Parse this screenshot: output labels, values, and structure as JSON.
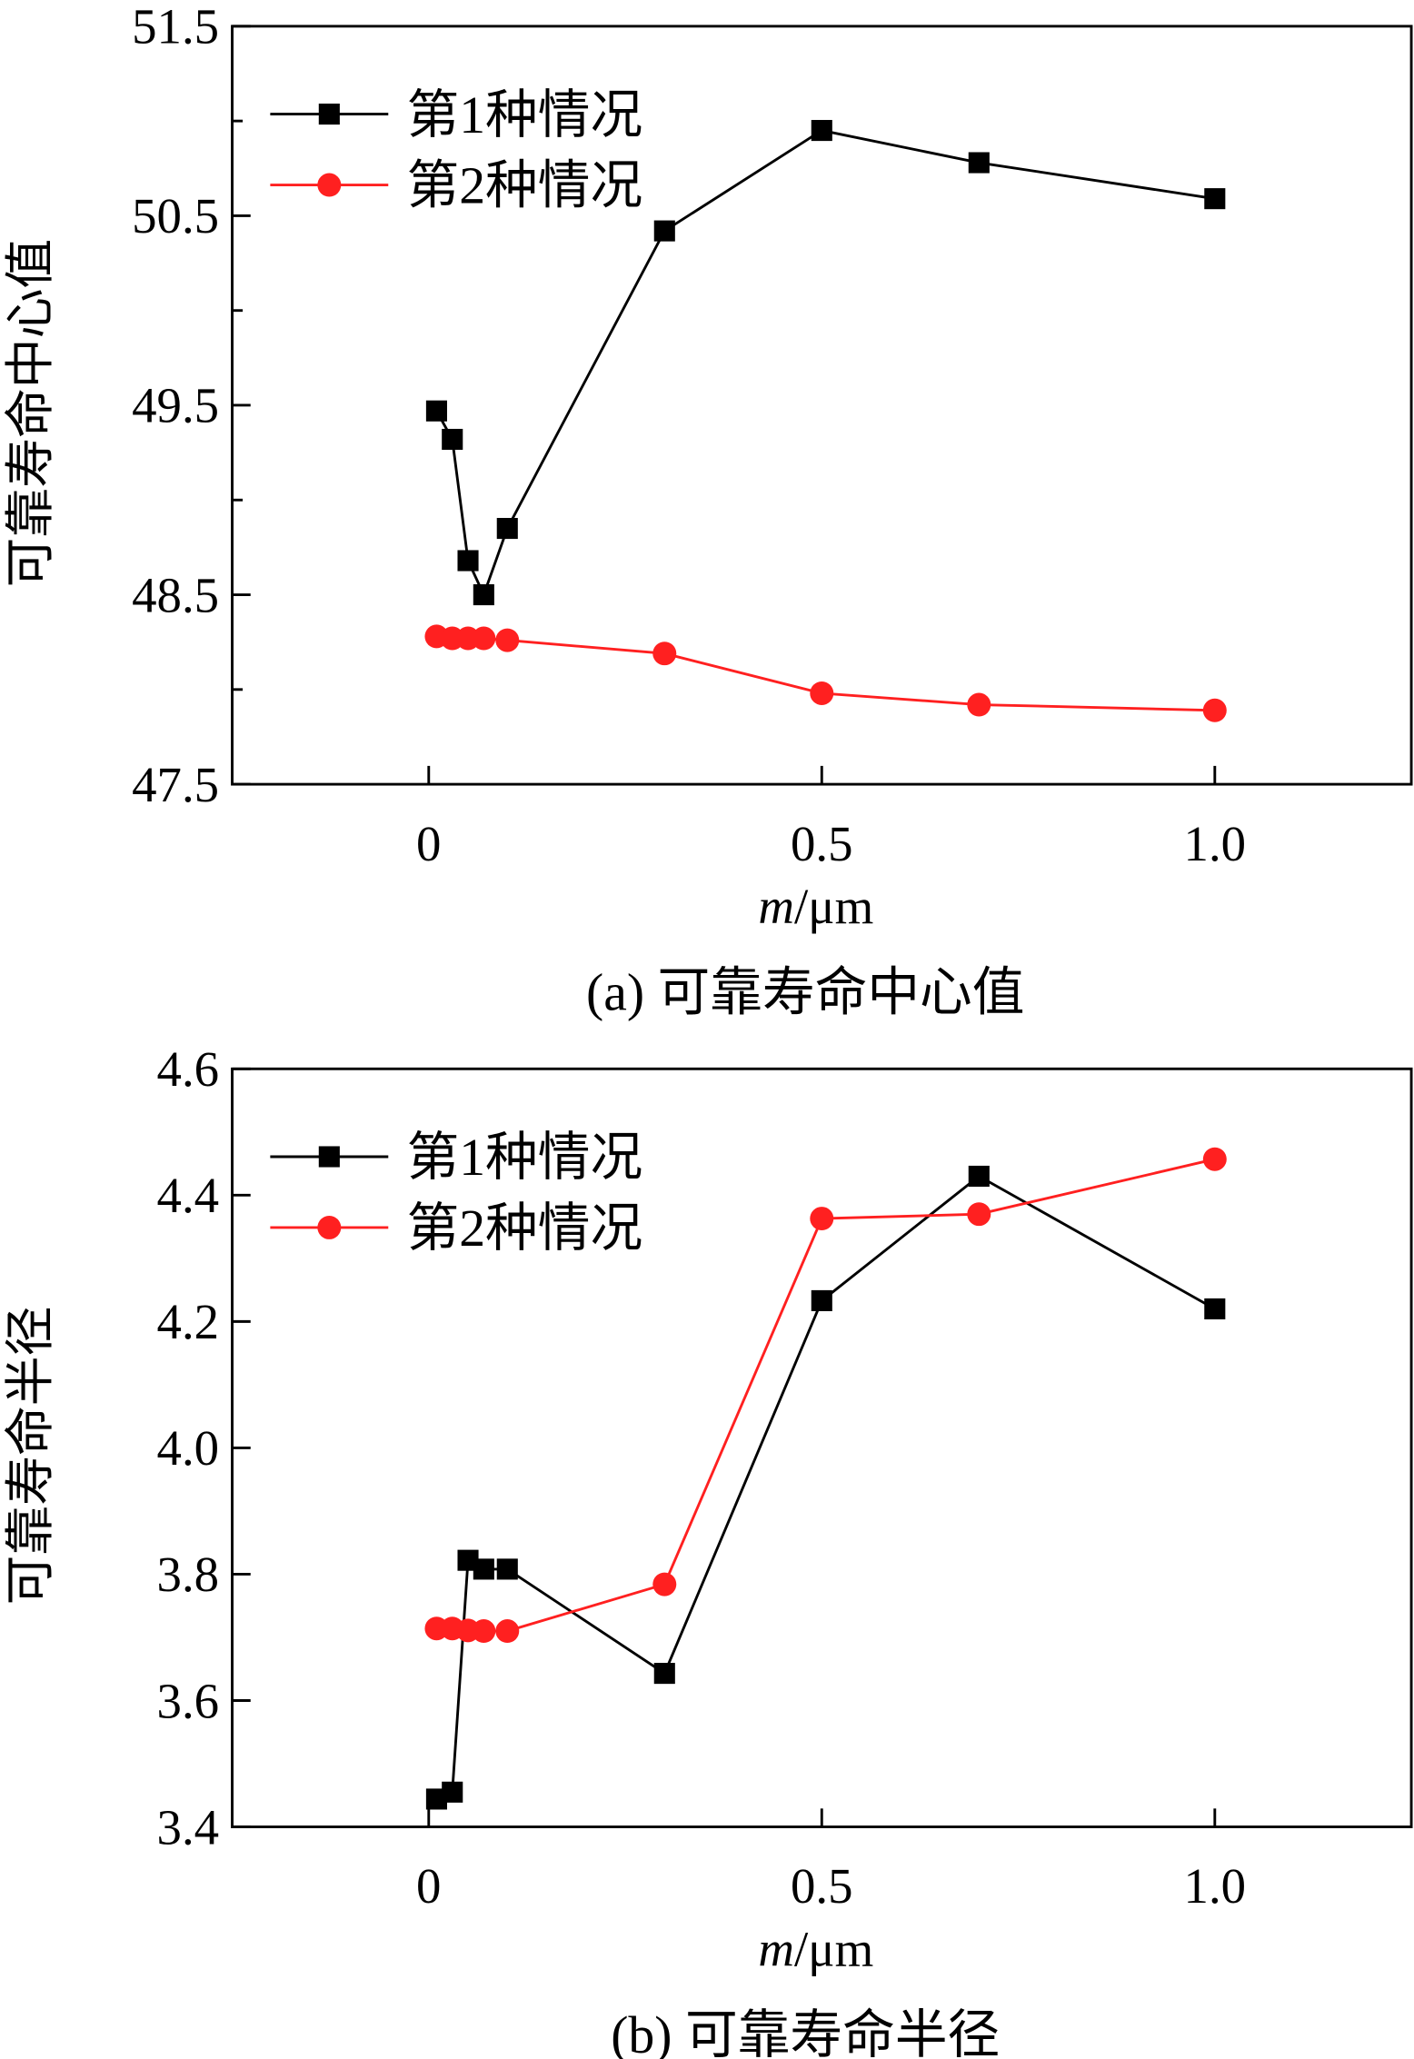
{
  "chart_data": [
    {
      "type": "line",
      "caption": "(a) 可靠寿命中心值",
      "xlabel_italic": "m",
      "xlabel_unit": "/μm",
      "ylabel": "可靠寿命中心值",
      "xlim": [
        -0.25,
        1.25
      ],
      "ylim": [
        47.5,
        51.5
      ],
      "xticks": [
        0,
        0.5,
        1.0
      ],
      "xtick_labels": [
        "0",
        "0.5",
        "1.0"
      ],
      "yticks": [
        47.5,
        48.5,
        49.5,
        50.5,
        51.5
      ],
      "ytick_labels": [
        "47.5",
        "48.5",
        "49.5",
        "50.5",
        "51.5"
      ],
      "yminor": [
        48,
        49,
        50,
        51
      ],
      "legend_position": "top-left",
      "x": [
        0.01,
        0.03,
        0.05,
        0.07,
        0.1,
        0.3,
        0.5,
        0.7,
        1.0
      ],
      "series": [
        {
          "name": "第1种情况",
          "color": "#000000",
          "marker": "square",
          "values": [
            49.47,
            49.32,
            48.68,
            48.5,
            48.85,
            50.42,
            50.95,
            50.78,
            50.59
          ]
        },
        {
          "name": "第2种情况",
          "color": "#ff2020",
          "marker": "circle",
          "values": [
            48.28,
            48.27,
            48.27,
            48.27,
            48.26,
            48.19,
            47.98,
            47.92,
            47.89
          ]
        }
      ]
    },
    {
      "type": "line",
      "caption": "(b) 可靠寿命半径",
      "xlabel_italic": "m",
      "xlabel_unit": "/μm",
      "ylabel": "可靠寿命半径",
      "xlim": [
        -0.25,
        1.25
      ],
      "ylim": [
        3.4,
        4.6
      ],
      "xticks": [
        0,
        0.5,
        1.0
      ],
      "xtick_labels": [
        "0",
        "0.5",
        "1.0"
      ],
      "yticks": [
        3.4,
        3.6,
        3.8,
        4.0,
        4.2,
        4.4,
        4.6
      ],
      "ytick_labels": [
        "3.4",
        "3.6",
        "3.8",
        "4.0",
        "4.2",
        "4.4",
        "4.6"
      ],
      "yminor": [],
      "legend_position": "top-left",
      "x": [
        0.01,
        0.03,
        0.05,
        0.07,
        0.1,
        0.3,
        0.5,
        0.7,
        1.0
      ],
      "series": [
        {
          "name": "第1种情况",
          "color": "#000000",
          "marker": "square",
          "values": [
            3.444,
            3.455,
            3.822,
            3.808,
            3.808,
            3.643,
            4.233,
            4.43,
            4.22
          ]
        },
        {
          "name": "第2种情况",
          "color": "#ff2020",
          "marker": "circle",
          "values": [
            3.714,
            3.714,
            3.711,
            3.71,
            3.71,
            3.784,
            4.363,
            4.37,
            4.457
          ]
        }
      ]
    }
  ]
}
